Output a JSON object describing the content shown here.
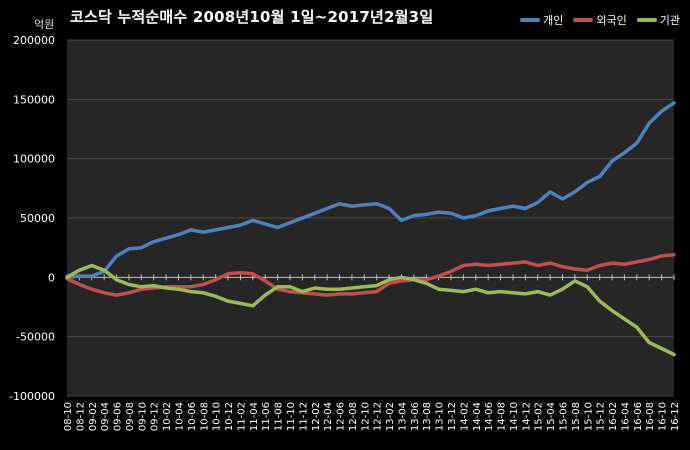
{
  "title": "코스닥 누적순매수 2008년10월 1일~2017년2월3일",
  "unit": "억원",
  "colors": {
    "background": "#000000",
    "plot_bg": "#262626",
    "grid": "#4a4a4a",
    "zero_line": "#bfbfbf",
    "individual": "#4f81bd",
    "foreign": "#c0504d",
    "institution": "#9bbb59"
  },
  "chart_data": {
    "type": "line",
    "title": "코스닥 누적순매수 2008년10월 1일~2017년2월3일",
    "ylabel": "억원",
    "xlabel": "",
    "ylim": [
      -100000,
      200000
    ],
    "yticks": [
      200000,
      150000,
      100000,
      50000,
      0,
      -50000,
      -100000
    ],
    "ytick_labels": [
      "200000",
      "150000",
      "100000",
      "50000",
      "0",
      "-50000",
      "-100000"
    ],
    "grid": true,
    "legend_position": "top-right",
    "categories": [
      "08-10",
      "08-12",
      "09-02",
      "09-04",
      "09-06",
      "09-08",
      "09-10",
      "09-12",
      "10-02",
      "10-04",
      "10-06",
      "10-08",
      "10-10",
      "10-12",
      "11-02",
      "11-04",
      "11-06",
      "11-08",
      "11-10",
      "11-12",
      "12-02",
      "12-04",
      "12-06",
      "12-08",
      "12-10",
      "12-12",
      "13-02",
      "13-04",
      "13-06",
      "13-08",
      "13-10",
      "13-12",
      "14-02",
      "14-04",
      "14-06",
      "14-08",
      "14-10",
      "14-12",
      "15-02",
      "15-04",
      "15-06",
      "15-08",
      "15-10",
      "15-12",
      "16-02",
      "16-04",
      "16-06",
      "16-08",
      "16-10",
      "16-12"
    ],
    "series": [
      {
        "name": "개인",
        "values": [
          0,
          1000,
          1000,
          5000,
          18000,
          24000,
          25000,
          30000,
          33000,
          36000,
          40000,
          38000,
          40000,
          42000,
          44000,
          48000,
          45000,
          42000,
          46000,
          50000,
          54000,
          58000,
          62000,
          60000,
          61000,
          62000,
          58000,
          48000,
          52000,
          53000,
          55000,
          54000,
          50000,
          52000,
          56000,
          58000,
          60000,
          58000,
          63000,
          72000,
          66000,
          72000,
          80000,
          85000,
          98000,
          105000,
          113000,
          130000,
          140000,
          147000
        ]
      },
      {
        "name": "외국인",
        "values": [
          -1000,
          -6000,
          -10000,
          -13000,
          -15000,
          -13000,
          -10000,
          -9000,
          -8000,
          -8000,
          -8000,
          -6000,
          -2000,
          3000,
          4000,
          3000,
          -3000,
          -10000,
          -12000,
          -13000,
          -14000,
          -15000,
          -14000,
          -14000,
          -13000,
          -12000,
          -5000,
          -3000,
          -2000,
          -2000,
          1000,
          5000,
          10000,
          11000,
          10000,
          11000,
          12000,
          13000,
          10000,
          12000,
          9000,
          7000,
          6000,
          10000,
          12000,
          11000,
          13000,
          15000,
          18000,
          19000
        ]
      },
      {
        "name": "기관",
        "values": [
          0,
          6000,
          10000,
          6000,
          -2000,
          -6000,
          -8000,
          -7000,
          -9000,
          -10000,
          -12000,
          -13000,
          -16000,
          -20000,
          -22000,
          -24000,
          -15000,
          -8000,
          -8000,
          -12000,
          -9000,
          -10000,
          -10000,
          -9000,
          -8000,
          -7000,
          -2000,
          0,
          -2000,
          -5000,
          -10000,
          -11000,
          -12000,
          -10000,
          -13000,
          -12000,
          -13000,
          -14000,
          -12000,
          -15000,
          -10000,
          -3000,
          -8000,
          -20000,
          -28000,
          -35000,
          -42000,
          -55000,
          -60000,
          -65000
        ]
      }
    ]
  }
}
